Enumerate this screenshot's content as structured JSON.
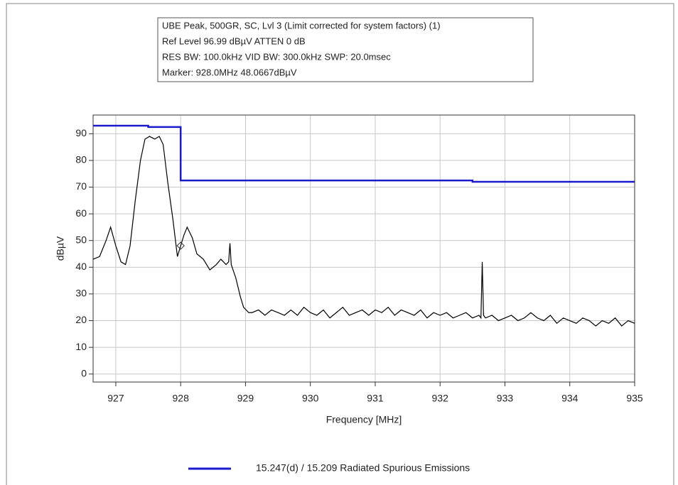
{
  "chart_data": {
    "type": "line",
    "info_box": [
      "UBE Peak, 500GR, SC, Lvl 3 (Limit corrected for system factors) (1)",
      "Ref Level 96.99 dBµV    ATTEN 0 dB",
      "RES BW: 100.0kHz  VID BW: 300.0kHz  SWP: 20.0msec",
      "Marker: 928.0MHz  48.0667dBµV"
    ],
    "x_label": "Frequency [MHz]",
    "y_label": "dBµV",
    "xlim": [
      926.65,
      935
    ],
    "ylim": [
      -3,
      97
    ],
    "xticks": [
      927,
      928,
      929,
      930,
      931,
      932,
      933,
      934,
      935
    ],
    "yticks": [
      0,
      10,
      20,
      30,
      40,
      50,
      60,
      70,
      80,
      90
    ],
    "grid": true,
    "legend": "bottom",
    "marker": {
      "x": 928.0,
      "y": 48.0667
    },
    "series": [
      {
        "name": "15.247(d) / 15.209 Radiated Spurious Emissions",
        "color": "#1a1acc",
        "x": [
          926.65,
          927.5,
          927.5,
          928.0,
          928.0,
          932.5,
          932.5,
          935.0
        ],
        "values": [
          93,
          93,
          92.5,
          92.5,
          72.5,
          72.5,
          72,
          72
        ]
      },
      {
        "color": "#000000",
        "x": [
          926.65,
          926.75,
          926.85,
          926.92,
          927.0,
          927.08,
          927.15,
          927.22,
          927.3,
          927.38,
          927.45,
          927.52,
          927.6,
          927.67,
          927.73,
          927.8,
          927.88,
          927.95,
          928.0,
          928.05,
          928.1,
          928.18,
          928.25,
          928.35,
          928.45,
          928.55,
          928.62,
          928.7,
          928.74,
          928.76,
          928.78,
          928.85,
          928.92,
          928.97,
          929.05,
          929.1,
          929.2,
          929.3,
          929.4,
          929.5,
          929.6,
          929.7,
          929.8,
          929.9,
          930.0,
          930.1,
          930.2,
          930.3,
          930.4,
          930.5,
          930.6,
          930.7,
          930.8,
          930.9,
          931.0,
          931.1,
          931.2,
          931.3,
          931.4,
          931.5,
          931.6,
          931.7,
          931.8,
          931.9,
          932.0,
          932.1,
          932.2,
          932.3,
          932.4,
          932.5,
          932.6,
          932.63,
          932.65,
          932.67,
          932.7,
          932.8,
          932.9,
          933.0,
          933.1,
          933.2,
          933.3,
          933.4,
          933.5,
          933.6,
          933.7,
          933.8,
          933.9,
          934.0,
          934.1,
          934.2,
          934.3,
          934.4,
          934.5,
          934.6,
          934.7,
          934.8,
          934.9,
          935.0
        ],
        "values": [
          43,
          44,
          50,
          55,
          48,
          42,
          41,
          48,
          65,
          80,
          88,
          89,
          88,
          89,
          86,
          72,
          58,
          44,
          48,
          52,
          55,
          51,
          45,
          43,
          39,
          41,
          43,
          41,
          42,
          49,
          41,
          36,
          29,
          25,
          23,
          23,
          24,
          22,
          24,
          23,
          22,
          24,
          22,
          25,
          23,
          22,
          24,
          21,
          23,
          25,
          22,
          23,
          24,
          22,
          24,
          23,
          25,
          22,
          24,
          23,
          22,
          24,
          21,
          23,
          22,
          23,
          21,
          22,
          23,
          21,
          22,
          21,
          42,
          22,
          21,
          22,
          20,
          21,
          22,
          20,
          21,
          23,
          21,
          20,
          22,
          19,
          21,
          20,
          19,
          21,
          20,
          18,
          20,
          19,
          21,
          18,
          20,
          19
        ]
      }
    ]
  }
}
